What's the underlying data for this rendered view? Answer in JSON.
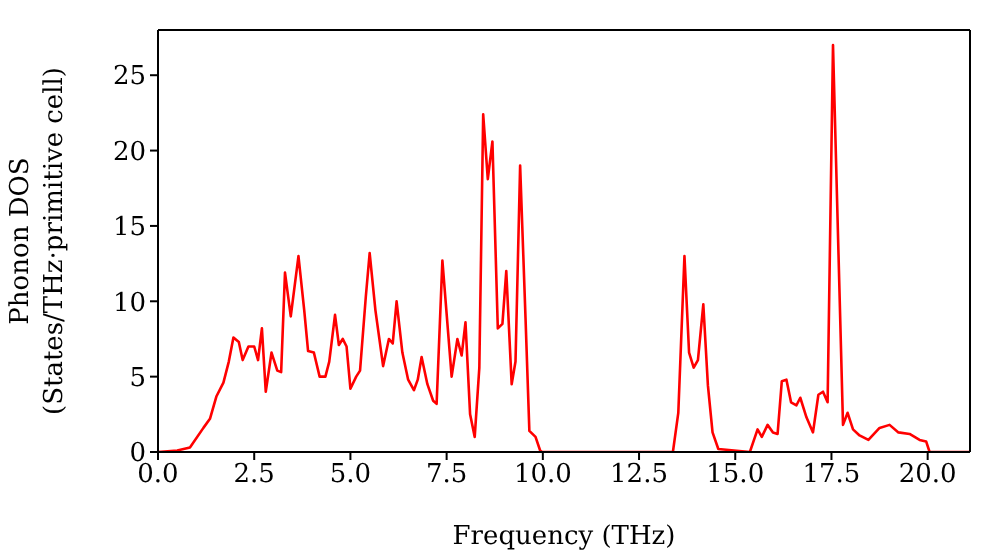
{
  "chart_data": {
    "type": "line",
    "xlabel": "Frequency (THz)",
    "ylabel": "Phonon DOS\n(States/THz·primitive cell)",
    "xlim": [
      0,
      21.1
    ],
    "ylim": [
      0,
      28
    ],
    "xticks": [
      {
        "value": 0,
        "label": "0.0"
      },
      {
        "value": 2.5,
        "label": "2.5"
      },
      {
        "value": 5,
        "label": "5.0"
      },
      {
        "value": 7.5,
        "label": "7.5"
      },
      {
        "value": 10,
        "label": "10.0"
      },
      {
        "value": 12.5,
        "label": "12.5"
      },
      {
        "value": 15,
        "label": "15.0"
      },
      {
        "value": 17.5,
        "label": "17.5"
      },
      {
        "value": 20,
        "label": "20.0"
      }
    ],
    "yticks": [
      0,
      5,
      10,
      15,
      20,
      25
    ],
    "marker": "none",
    "line_style": "solid",
    "x": [
      0,
      0.5,
      0.83,
      1.18,
      1.35,
      1.52,
      1.7,
      1.84,
      1.96,
      2.1,
      2.2,
      2.35,
      2.5,
      2.6,
      2.7,
      2.8,
      2.95,
      3.1,
      3.2,
      3.3,
      3.45,
      3.65,
      3.8,
      3.9,
      4.05,
      4.2,
      4.35,
      4.45,
      4.6,
      4.7,
      4.8,
      4.9,
      5.0,
      5.15,
      5.25,
      5.4,
      5.5,
      5.65,
      5.85,
      6.0,
      6.1,
      6.2,
      6.35,
      6.5,
      6.65,
      6.75,
      6.85,
      7.0,
      7.15,
      7.24,
      7.39,
      7.63,
      7.78,
      7.89,
      7.99,
      8.11,
      8.23,
      8.35,
      8.45,
      8.57,
      8.69,
      8.83,
      8.95,
      9.05,
      9.19,
      9.29,
      9.41,
      9.55,
      9.65,
      9.81,
      9.93,
      9.98,
      13.38,
      13.52,
      13.68,
      13.8,
      13.92,
      14.03,
      14.17,
      14.29,
      14.41,
      14.56,
      15.38,
      15.58,
      15.69,
      15.84,
      15.98,
      16.1,
      16.21,
      16.33,
      16.45,
      16.59,
      16.69,
      16.85,
      17.02,
      17.16,
      17.28,
      17.4,
      17.54,
      17.8,
      17.92,
      18.06,
      18.23,
      18.46,
      18.75,
      19.01,
      19.24,
      19.53,
      19.79,
      19.96,
      20.05,
      21.1
    ],
    "series": [
      {
        "color": "#ff0000",
        "values": [
          0,
          0.1,
          0.3,
          1.6,
          2.2,
          3.7,
          4.6,
          6,
          7.6,
          7.3,
          6.1,
          7,
          7,
          6.1,
          8.2,
          4,
          6.6,
          5.4,
          5.3,
          11.9,
          9,
          13,
          9.4,
          6.7,
          6.6,
          5,
          5,
          6,
          9.1,
          7.1,
          7.5,
          7,
          4.2,
          5,
          5.4,
          10.3,
          13.2,
          9.4,
          5.7,
          7.5,
          7.2,
          10,
          6.6,
          4.8,
          4.1,
          4.8,
          6.3,
          4.5,
          3.4,
          3.2,
          12.7,
          5,
          7.5,
          6.4,
          8.6,
          2.5,
          1,
          5.6,
          22.4,
          18.1,
          20.6,
          8.2,
          8.5,
          12,
          4.5,
          6,
          19,
          8.9,
          1.4,
          1,
          0.1,
          0,
          0,
          2.6,
          13,
          6.6,
          5.6,
          6.1,
          9.8,
          4.4,
          1.3,
          0.2,
          0,
          1.5,
          1,
          1.8,
          1.3,
          1.2,
          4.7,
          4.8,
          3.3,
          3.1,
          3.6,
          2.3,
          1.3,
          3.8,
          4,
          3.3,
          27,
          1.8,
          2.6,
          1.5,
          1.1,
          0.8,
          1.6,
          1.8,
          1.3,
          1.2,
          0.8,
          0.7,
          0,
          0
        ]
      }
    ]
  }
}
